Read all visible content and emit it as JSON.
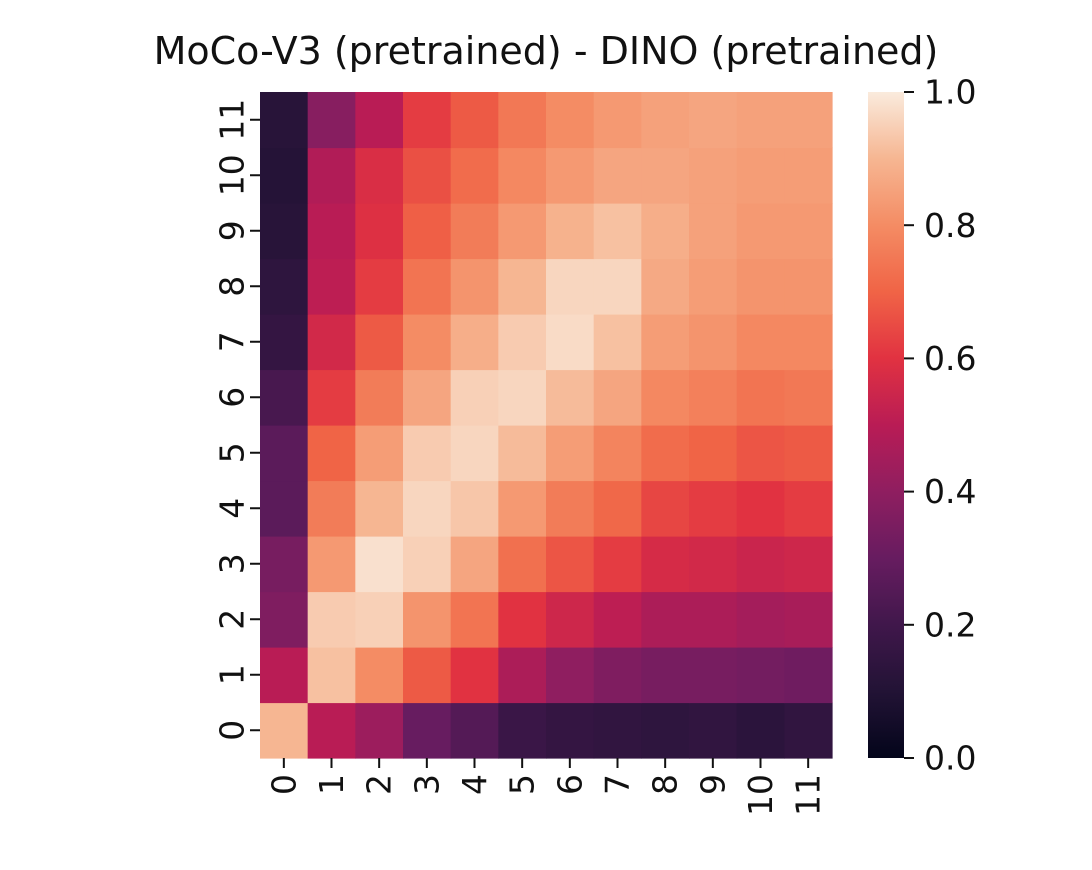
{
  "chart_data": {
    "type": "heatmap",
    "title": "MoCo-V3 (pretrained) - DINO (pretrained)",
    "xlabel": "",
    "ylabel": "",
    "x_categories": [
      "0",
      "1",
      "2",
      "3",
      "4",
      "5",
      "6",
      "7",
      "8",
      "9",
      "10",
      "11"
    ],
    "y_categories": [
      "0",
      "1",
      "2",
      "3",
      "4",
      "5",
      "6",
      "7",
      "8",
      "9",
      "10",
      "11"
    ],
    "row_order": "bottom-to-top",
    "values": [
      [
        0.9,
        0.5,
        0.43,
        0.3,
        0.25,
        0.18,
        0.16,
        0.15,
        0.14,
        0.15,
        0.13,
        0.15
      ],
      [
        0.5,
        0.92,
        0.8,
        0.68,
        0.6,
        0.47,
        0.4,
        0.36,
        0.34,
        0.34,
        0.33,
        0.32
      ],
      [
        0.36,
        0.94,
        0.95,
        0.82,
        0.74,
        0.6,
        0.55,
        0.51,
        0.47,
        0.47,
        0.45,
        0.46
      ],
      [
        0.34,
        0.83,
        0.98,
        0.95,
        0.86,
        0.73,
        0.67,
        0.62,
        0.57,
        0.56,
        0.54,
        0.55
      ],
      [
        0.27,
        0.76,
        0.9,
        0.96,
        0.93,
        0.83,
        0.76,
        0.71,
        0.64,
        0.62,
        0.6,
        0.62
      ],
      [
        0.27,
        0.7,
        0.84,
        0.94,
        0.96,
        0.91,
        0.84,
        0.78,
        0.72,
        0.7,
        0.67,
        0.68
      ],
      [
        0.22,
        0.62,
        0.76,
        0.86,
        0.95,
        0.96,
        0.91,
        0.86,
        0.79,
        0.77,
        0.74,
        0.75
      ],
      [
        0.16,
        0.56,
        0.68,
        0.8,
        0.88,
        0.94,
        0.97,
        0.92,
        0.84,
        0.82,
        0.79,
        0.79
      ],
      [
        0.14,
        0.51,
        0.62,
        0.74,
        0.82,
        0.9,
        0.96,
        0.96,
        0.87,
        0.84,
        0.82,
        0.82
      ],
      [
        0.12,
        0.5,
        0.59,
        0.69,
        0.76,
        0.83,
        0.89,
        0.92,
        0.88,
        0.85,
        0.83,
        0.83
      ],
      [
        0.11,
        0.48,
        0.58,
        0.66,
        0.72,
        0.79,
        0.83,
        0.86,
        0.86,
        0.85,
        0.84,
        0.84
      ],
      [
        0.12,
        0.38,
        0.5,
        0.62,
        0.68,
        0.75,
        0.8,
        0.83,
        0.85,
        0.86,
        0.85,
        0.85
      ]
    ],
    "vmin": 0.0,
    "vmax": 1.0,
    "colormap": "rocket",
    "colorbar": {
      "ticks": [
        0.0,
        0.2,
        0.4,
        0.6,
        0.8,
        1.0
      ],
      "tick_labels": [
        "0.0",
        "0.2",
        "0.4",
        "0.6",
        "0.8",
        "1.0"
      ]
    },
    "grid": false,
    "legend": "none"
  }
}
